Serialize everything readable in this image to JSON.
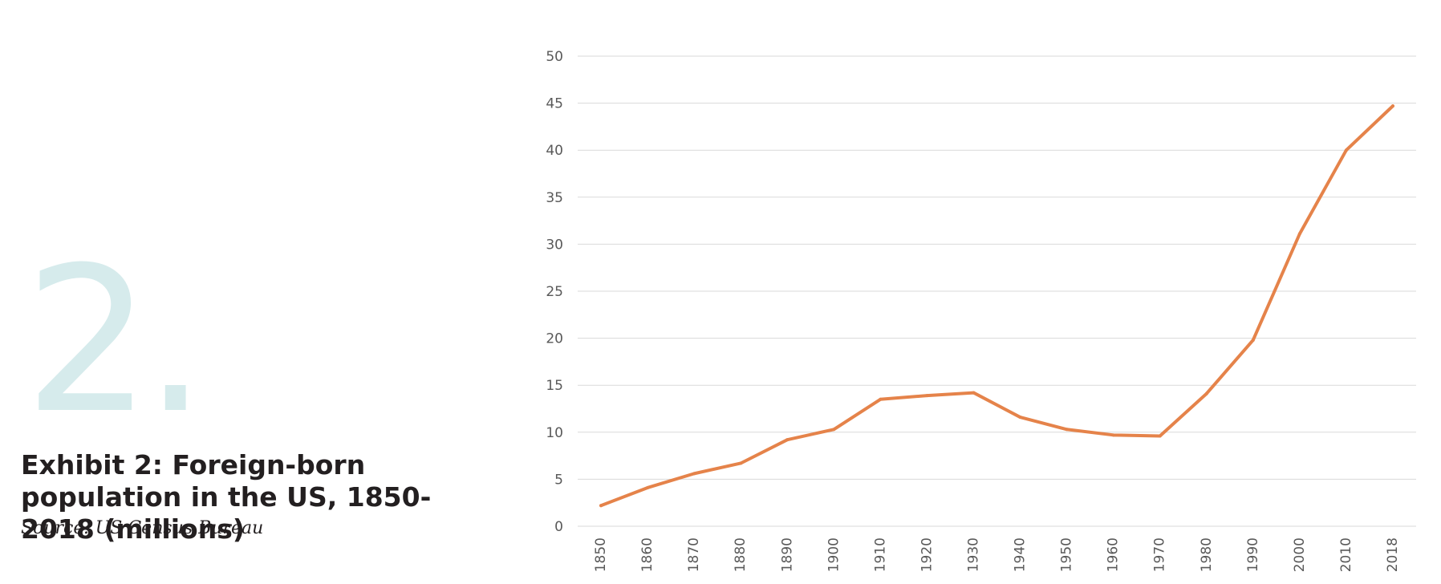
{
  "exhibit": {
    "number": "2.",
    "title": "Exhibit 2: Foreign-born population in the US, 1850-2018 (millions)",
    "source": "Source: US Census Bureau"
  },
  "colors": {
    "line": "#e5834a",
    "grid": "#d9d9d9",
    "big_number": "#d6ebec",
    "text": "#231f20",
    "tick_text": "#595959"
  },
  "chart_data": {
    "type": "line",
    "title": "Exhibit 2: Foreign-born population in the US, 1850-2018 (millions)",
    "xlabel": "",
    "ylabel": "",
    "categories": [
      "1850",
      "1860",
      "1870",
      "1880",
      "1890",
      "1900",
      "1910",
      "1920",
      "1930",
      "1940",
      "1950",
      "1960",
      "1970",
      "1980",
      "1990",
      "2000",
      "2010",
      "2018"
    ],
    "series": [
      {
        "values": [
          2.2,
          4.1,
          5.6,
          6.7,
          9.2,
          10.3,
          13.5,
          13.9,
          14.2,
          11.6,
          10.3,
          9.7,
          9.6,
          14.1,
          19.8,
          31.1,
          40.0,
          44.7
        ]
      }
    ],
    "ylim": [
      0,
      50
    ],
    "yticks": [
      0,
      5,
      10,
      15,
      20,
      25,
      30,
      35,
      40,
      45,
      50
    ],
    "grid": "horizontal",
    "legend": "none"
  }
}
